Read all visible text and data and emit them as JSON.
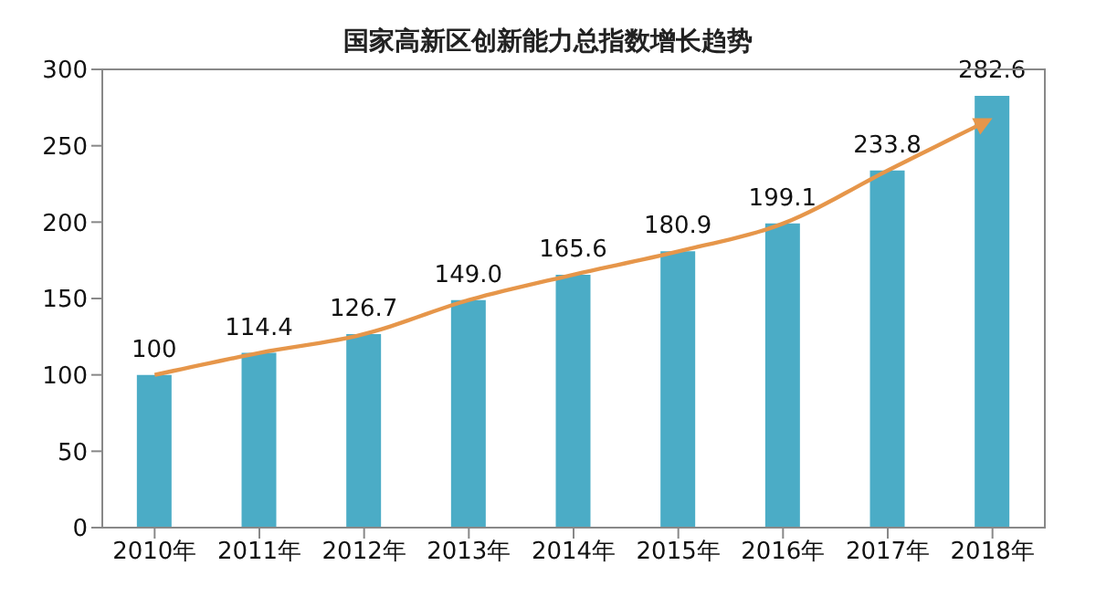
{
  "chart_data": {
    "type": "bar",
    "title": "国家高新区创新能力总指数增长趋势",
    "categories": [
      "2010年",
      "2011年",
      "2012年",
      "2013年",
      "2014年",
      "2015年",
      "2016年",
      "2017年",
      "2018年"
    ],
    "values": [
      100,
      114.4,
      126.7,
      149.0,
      165.6,
      180.9,
      199.1,
      233.8,
      282.6
    ],
    "value_labels": [
      "100",
      "114.4",
      "126.7",
      "149.0",
      "165.6",
      "180.9",
      "199.1",
      "233.8",
      "282.6"
    ],
    "color": "#4bacc6",
    "ylim": [
      0,
      300
    ],
    "yticks": [
      0,
      50,
      100,
      150,
      200,
      250,
      300
    ],
    "grid": false,
    "legend": false
  }
}
